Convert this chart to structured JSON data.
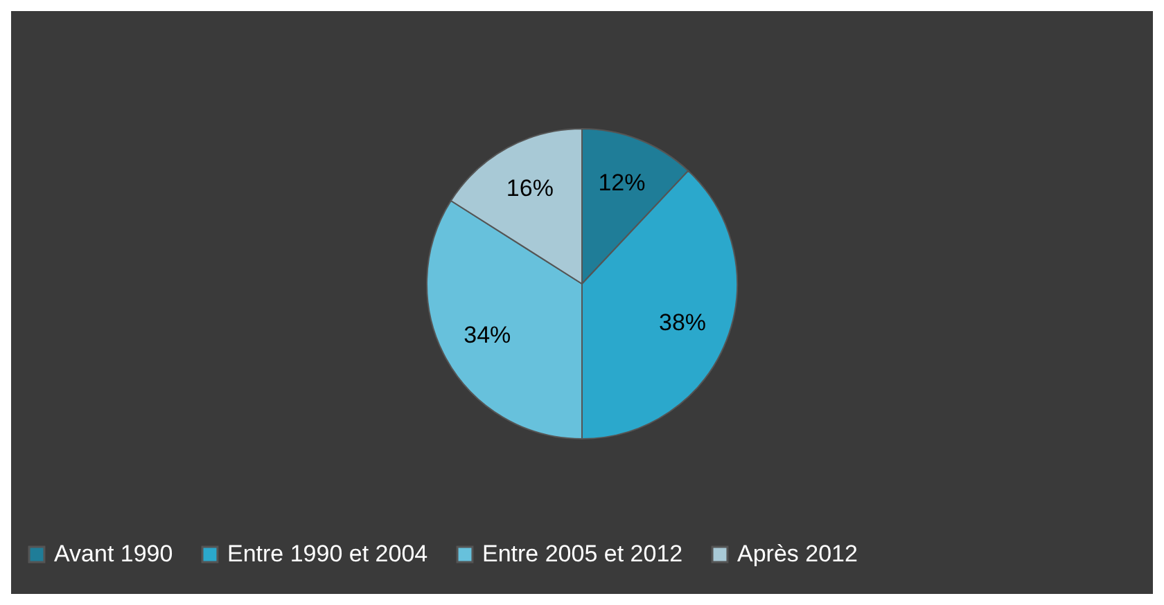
{
  "chart_data": {
    "type": "pie",
    "categories": [
      "Avant 1990",
      "Entre 1990 et 2004",
      "Entre 2005 et 2012",
      "Après 2012"
    ],
    "values": [
      12,
      38,
      34,
      16
    ],
    "colors": [
      "#1f7d98",
      "#2ba8cc",
      "#67c1dc",
      "#a8c9d6"
    ],
    "value_labels": [
      "12%",
      "38%",
      "34%",
      "16%"
    ],
    "legend": "bottom"
  }
}
